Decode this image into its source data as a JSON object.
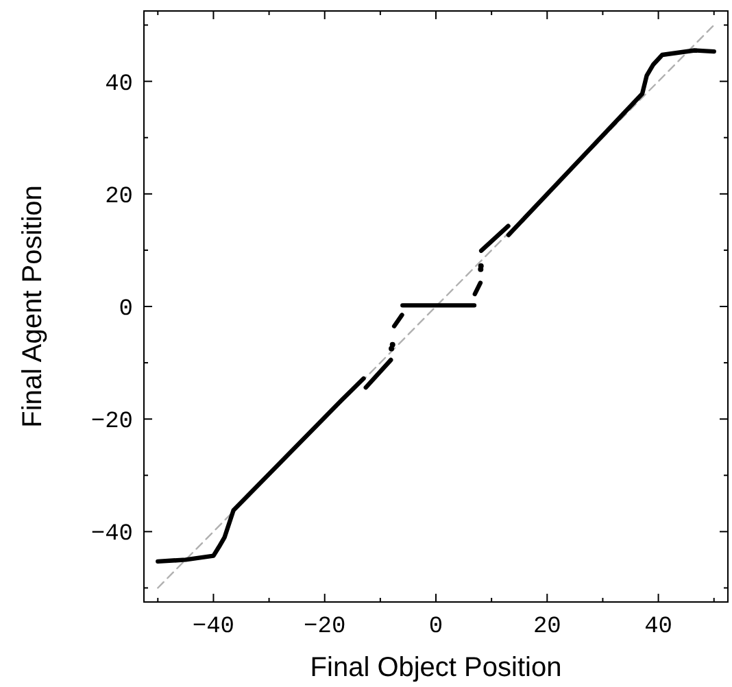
{
  "chart_data": {
    "type": "line",
    "xlabel": "Final Object Position",
    "ylabel": "Final Agent Position",
    "xlim": [
      -52.5,
      52.5
    ],
    "ylim": [
      -52.5,
      52.5
    ],
    "xticks": [
      {
        "value": -50,
        "label": null
      },
      -40,
      {
        "value": -30,
        "label": null
      },
      -20,
      {
        "value": -10,
        "label": null
      },
      0,
      {
        "value": 10,
        "label": null
      },
      20,
      {
        "value": 30,
        "label": null
      },
      40,
      {
        "value": 50,
        "label": null
      }
    ],
    "yticks": [
      {
        "value": -50,
        "label": null
      },
      -40,
      {
        "value": -30,
        "label": null
      },
      -20,
      {
        "value": -10,
        "label": null
      },
      0,
      {
        "value": 10,
        "label": null
      },
      20,
      {
        "value": 30,
        "label": null
      },
      40,
      {
        "value": 50,
        "label": null
      }
    ],
    "grid": false,
    "series": [
      {
        "color": "#b0b0b0",
        "line_style": "dashed",
        "x": [
          -50,
          50
        ],
        "values": [
          -50,
          50
        ]
      },
      {
        "color": "#000000",
        "line_style": "solid",
        "x": [
          -50,
          -45,
          -40,
          -39,
          -38,
          -37.5,
          -36.4,
          -17,
          -13,
          -12.8,
          -12.6,
          -8.1,
          -7.6,
          -7.5,
          -6.1,
          -6.05,
          -6,
          6.9,
          6.95,
          7,
          8,
          8.12,
          8.15,
          13,
          13.02,
          13.05,
          37.1,
          37.9,
          39.1,
          40.7,
          46.5,
          50
        ],
        "values": [
          -45.3,
          -45,
          -44.3,
          -42.7,
          -41,
          -39.5,
          -36.2,
          -16.7,
          -12.8,
          null,
          -14.4,
          -9.5,
          null,
          -3.5,
          -1.5,
          null,
          0.2,
          0.2,
          null,
          2.2,
          4.2,
          null,
          9.9,
          14.3,
          null,
          12.7,
          37.8,
          41,
          43,
          44.7,
          45.5,
          45.3
        ]
      },
      {
        "type": "scatter",
        "color": "#000000",
        "x": [
          -8,
          -7.8,
          8.05,
          8.1
        ],
        "values": [
          -7.5,
          -6.8,
          6.6,
          7.2
        ]
      }
    ]
  }
}
